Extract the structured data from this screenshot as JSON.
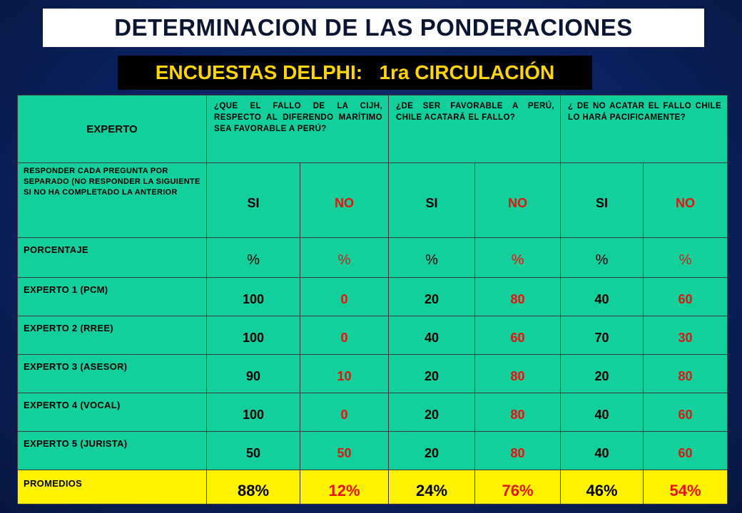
{
  "title": "DETERMINACION DE LAS PONDERACIONES",
  "subtitle": "ENCUESTAS DELPHI:   1ra CIRCULACIÓN",
  "table": {
    "header": {
      "expert_label": "EXPERTO",
      "questions": [
        "¿QUE EL FALLO DE LA CIJH, RESPECTO AL DIFERENDO MARÍTIMO SEA FAVORABLE A PERÚ?",
        "¿DE SER FAVORABLE A PERÚ, CHILE ACATARÁ EL FALLO?",
        "¿ DE NO ACATAR EL FALLO CHILE LO HARÁ PACIFICAMENTE?"
      ]
    },
    "instruction": "RESPONDER CADA PREGUNTA POR SEPARADO (NO RESPONDER LA SIGUIENTE SI NO HA COMPLETADO LA ANTERIOR",
    "answer_labels": [
      "SI",
      "NO",
      "SI",
      "NO",
      "SI",
      "NO"
    ],
    "percent_row": {
      "label": "PORCENTAJE",
      "symbols": [
        "%",
        "%",
        "%",
        "%",
        "%",
        "%"
      ]
    },
    "rows": [
      {
        "label": "EXPERTO 1 (PCM)",
        "values": [
          "100",
          "0",
          "20",
          "80",
          "40",
          "60"
        ]
      },
      {
        "label": "EXPERTO 2 (RREE)",
        "values": [
          "100",
          "0",
          "40",
          "60",
          "70",
          "30"
        ]
      },
      {
        "label": "EXPERTO 3 (ASESOR)",
        "values": [
          "90",
          "10",
          "20",
          "80",
          "20",
          "80"
        ]
      },
      {
        "label": "EXPERTO 4 (VOCAL)",
        "values": [
          "100",
          "0",
          "20",
          "80",
          "40",
          "60"
        ]
      },
      {
        "label": "EXPERTO 5 (JURISTA)",
        "values": [
          "50",
          "50",
          "20",
          "80",
          "40",
          "60"
        ]
      }
    ],
    "averages": {
      "label": "PROMEDIOS",
      "values": [
        "88%",
        "12%",
        "24%",
        "76%",
        "46%",
        "54%"
      ]
    }
  },
  "colors": {
    "background": "#0a2260",
    "title_box": "#ffffff",
    "subtitle_box": "#000000",
    "subtitle_text": "#ffd400",
    "table_cell": "#12d09c",
    "averages_row": "#fff200",
    "no_value_text": "#e8120c"
  }
}
